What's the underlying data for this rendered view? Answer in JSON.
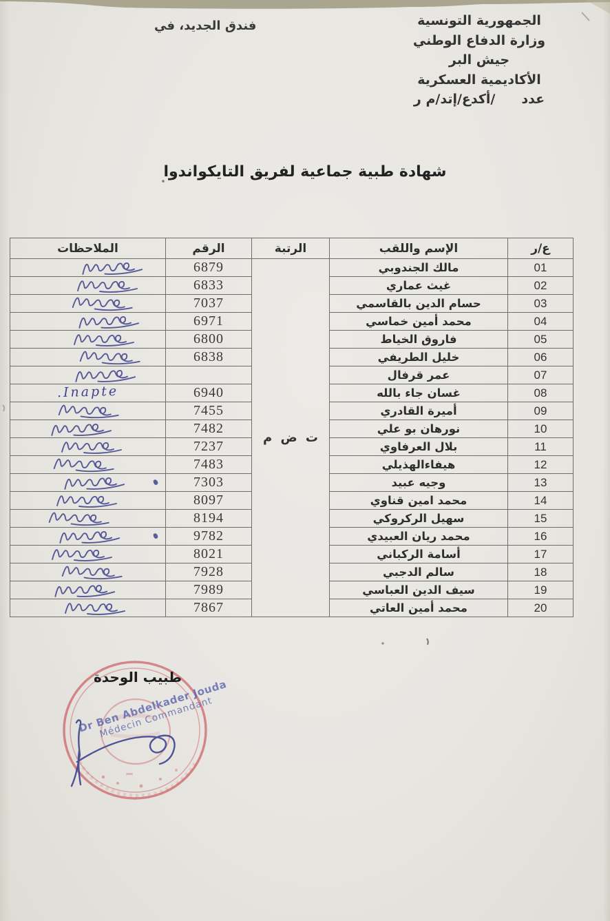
{
  "colors": {
    "ink_blue": "#3f448e",
    "stamp_red": "#c94b52",
    "paper": "#e8e6e1"
  },
  "header": {
    "right_lines": [
      "الجمهورية التونسية",
      "وزارة الدفاع الوطني",
      "جيش البر",
      "الأكاديمية العسكرية"
    ],
    "number_label": "عدد",
    "number_ref": "/أكدع/إتد/م ر",
    "left_text": "فندق الجديد، في"
  },
  "title": "شهادة طبية جماعية لفريق التايكواندوا",
  "table": {
    "headers": {
      "index": "ع/ر",
      "name": "الإسم واللقب",
      "rank": "الرتبة",
      "number": "الرقم",
      "notes": "الملاحظات"
    },
    "rank_value": "ت ض م",
    "rows": [
      {
        "index": "01",
        "name": "مالك الجندوبي",
        "number": "6879",
        "remark": "",
        "remark_type": "signature",
        "dot": false
      },
      {
        "index": "02",
        "name": "غيث عماري",
        "number": "6833",
        "remark": "",
        "remark_type": "signature",
        "dot": false
      },
      {
        "index": "03",
        "name": "حسام الدين بالقاسمي",
        "number": "7037",
        "remark": "",
        "remark_type": "signature",
        "dot": false
      },
      {
        "index": "04",
        "name": "محمد أمين خماسي",
        "number": "6971",
        "remark": "",
        "remark_type": "signature",
        "dot": false
      },
      {
        "index": "05",
        "name": "فاروق الخياط",
        "number": "6800",
        "remark": "",
        "remark_type": "signature",
        "dot": false
      },
      {
        "index": "06",
        "name": "خليل الطريفي",
        "number": "6838",
        "remark": "",
        "remark_type": "signature",
        "dot": false
      },
      {
        "index": "07",
        "name": "عمر قرفال",
        "number": "",
        "remark": "",
        "remark_type": "signature",
        "dot": false
      },
      {
        "index": "08",
        "name": "غسان جاء بالله",
        "number": "6940",
        "remark": "Inapte.",
        "remark_type": "text",
        "dot": false
      },
      {
        "index": "09",
        "name": "أميرة القادري",
        "number": "7455",
        "remark": "",
        "remark_type": "signature",
        "dot": false
      },
      {
        "index": "10",
        "name": "نورهان بو علي",
        "number": "7482",
        "remark": "",
        "remark_type": "signature",
        "dot": false
      },
      {
        "index": "11",
        "name": "بلال العرفاوي",
        "number": "7237",
        "remark": "",
        "remark_type": "signature",
        "dot": false
      },
      {
        "index": "12",
        "name": "هيفاءالهذيلي",
        "number": "7483",
        "remark": "",
        "remark_type": "signature",
        "dot": false
      },
      {
        "index": "13",
        "name": "وجيه عبيد",
        "number": "7303",
        "remark": "",
        "remark_type": "signature",
        "dot": true
      },
      {
        "index": "14",
        "name": "محمد امين قناوي",
        "number": "8097",
        "remark": "",
        "remark_type": "signature",
        "dot": false
      },
      {
        "index": "15",
        "name": "سهيل الركروكي",
        "number": "8194",
        "remark": "",
        "remark_type": "signature",
        "dot": false
      },
      {
        "index": "16",
        "name": "محمد ريان العبيدي",
        "number": "9782",
        "remark": "",
        "remark_type": "signature",
        "dot": true
      },
      {
        "index": "17",
        "name": "أسامة الركباني",
        "number": "8021",
        "remark": "",
        "remark_type": "signature",
        "dot": false
      },
      {
        "index": "18",
        "name": "سالم الدجبي",
        "number": "7928",
        "remark": "",
        "remark_type": "signature",
        "dot": false
      },
      {
        "index": "19",
        "name": "سيف الدين العباسي",
        "number": "7989",
        "remark": "",
        "remark_type": "signature",
        "dot": false
      },
      {
        "index": "20",
        "name": "محمد أمين العاتي",
        "number": "7867",
        "remark": "",
        "remark_type": "signature",
        "dot": false
      }
    ]
  },
  "footer": {
    "doctor_title": "طبيب الوحدة",
    "stamp_name": "Dr Ben Abdelkader Jouda",
    "stamp_rank": "Médecin Commandant"
  }
}
